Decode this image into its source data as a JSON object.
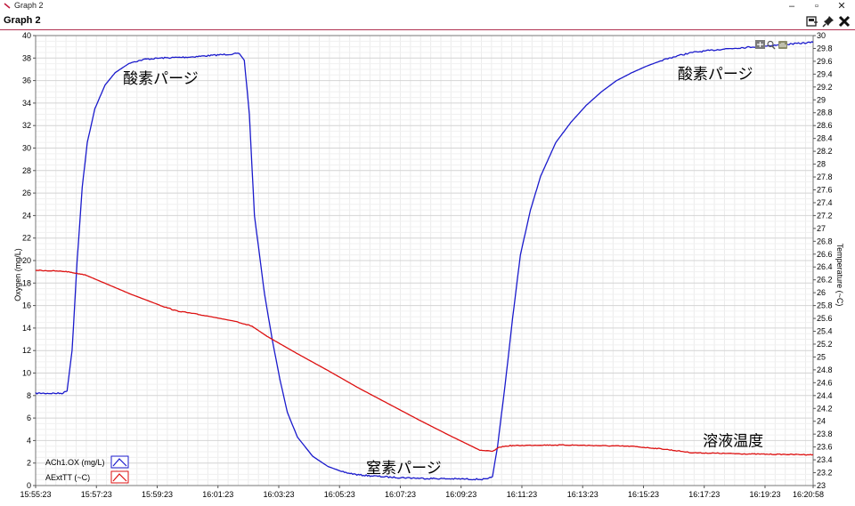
{
  "window": {
    "title": "Graph 2",
    "panel_title": "Graph 2",
    "icons": [
      "app-logo-icon",
      "minimize-icon",
      "restore-icon",
      "close-icon",
      "export-icon",
      "pin-icon",
      "close-graph-icon",
      "zoom-fit-icon",
      "zoom-icon",
      "hand-icon"
    ]
  },
  "chart_data": {
    "type": "line",
    "xlabel": "",
    "ylabel_left": "Oxygen (mg/L)",
    "ylabel_right": "Temperature (~C)",
    "x_ticks": [
      "15:55:23",
      "15:57:23",
      "15:59:23",
      "16:01:23",
      "16:03:23",
      "16:05:23",
      "16:07:23",
      "16:09:23",
      "16:11:23",
      "16:13:23",
      "16:15:23",
      "16:17:23",
      "16:19:23",
      "16:20:58"
    ],
    "xlim": [
      "15:55:23",
      "16:20:58"
    ],
    "ylim_left": [
      0,
      40
    ],
    "left_ticks": [
      "0",
      "2",
      "4",
      "6",
      "8",
      "10",
      "12",
      "14",
      "16",
      "18",
      "20",
      "22",
      "24",
      "26",
      "28",
      "30",
      "32",
      "34",
      "36",
      "38",
      "40"
    ],
    "ylim_right": [
      23,
      30
    ],
    "right_ticks": [
      "23",
      "23.2",
      "23.4",
      "23.6",
      "23.8",
      "24",
      "24.2",
      "24.4",
      "24.6",
      "24.8",
      "25",
      "25.2",
      "25.4",
      "25.6",
      "25.8",
      "26",
      "26.2",
      "26.4",
      "26.6",
      "26.8",
      "27",
      "27.2",
      "27.4",
      "27.6",
      "27.8",
      "28",
      "28.2",
      "28.4",
      "28.6",
      "28.8",
      "29",
      "29.2",
      "29.4",
      "29.6",
      "29.8",
      "30"
    ],
    "grid": true,
    "legend_position": "bottom-left",
    "series": [
      {
        "name": "ACh1.OX (mg/L)",
        "axis": "left",
        "color": "#1a1acc",
        "points": [
          [
            "15:55:23",
            8.2
          ],
          [
            "15:56:15",
            8.2
          ],
          [
            "15:56:25",
            8.4
          ],
          [
            "15:56:35",
            12
          ],
          [
            "15:56:45",
            20
          ],
          [
            "15:56:55",
            26.5
          ],
          [
            "15:57:05",
            30.5
          ],
          [
            "15:57:20",
            33.5
          ],
          [
            "15:57:40",
            35.6
          ],
          [
            "15:58:00",
            36.7
          ],
          [
            "15:58:30",
            37.6
          ],
          [
            "15:59:00",
            37.9
          ],
          [
            "15:59:30",
            38.0
          ],
          [
            "16:00:30",
            38.1
          ],
          [
            "16:01:30",
            38.3
          ],
          [
            "16:02:05",
            38.4
          ],
          [
            "16:02:15",
            37.8
          ],
          [
            "16:02:25",
            33
          ],
          [
            "16:02:35",
            24
          ],
          [
            "16:02:45",
            20.5
          ],
          [
            "16:02:55",
            17
          ],
          [
            "16:03:10",
            13
          ],
          [
            "16:03:25",
            9.5
          ],
          [
            "16:03:40",
            6.5
          ],
          [
            "16:04:00",
            4.3
          ],
          [
            "16:04:30",
            2.6
          ],
          [
            "16:05:00",
            1.7
          ],
          [
            "16:05:30",
            1.2
          ],
          [
            "16:06:00",
            0.95
          ],
          [
            "16:07:00",
            0.75
          ],
          [
            "16:08:00",
            0.65
          ],
          [
            "16:09:00",
            0.6
          ],
          [
            "16:10:15",
            0.55
          ],
          [
            "16:10:25",
            0.8
          ],
          [
            "16:10:35",
            3.5
          ],
          [
            "16:10:50",
            9
          ],
          [
            "16:11:05",
            15
          ],
          [
            "16:11:20",
            20.5
          ],
          [
            "16:11:40",
            24.5
          ],
          [
            "16:12:00",
            27.5
          ],
          [
            "16:12:30",
            30.5
          ],
          [
            "16:13:00",
            32.3
          ],
          [
            "16:13:30",
            33.8
          ],
          [
            "16:14:00",
            35.0
          ],
          [
            "16:14:30",
            36.0
          ],
          [
            "16:15:00",
            36.7
          ],
          [
            "16:15:30",
            37.3
          ],
          [
            "16:16:00",
            37.8
          ],
          [
            "16:16:30",
            38.2
          ],
          [
            "16:17:00",
            38.5
          ],
          [
            "16:18:00",
            38.8
          ],
          [
            "16:19:00",
            39.0
          ],
          [
            "16:20:00",
            39.2
          ],
          [
            "16:20:58",
            39.4
          ]
        ]
      },
      {
        "name": "AExtTT (~C)",
        "axis": "right",
        "color": "#dd1111",
        "points": [
          [
            "15:55:23",
            26.35
          ],
          [
            "15:56:23",
            26.33
          ],
          [
            "15:57:00",
            26.28
          ],
          [
            "15:57:30",
            26.18
          ],
          [
            "15:58:30",
            25.98
          ],
          [
            "15:59:30",
            25.8
          ],
          [
            "16:00:00",
            25.72
          ],
          [
            "16:01:00",
            25.64
          ],
          [
            "16:02:00",
            25.55
          ],
          [
            "16:02:30",
            25.48
          ],
          [
            "16:03:00",
            25.32
          ],
          [
            "16:04:00",
            25.05
          ],
          [
            "16:05:00",
            24.79
          ],
          [
            "16:06:00",
            24.52
          ],
          [
            "16:07:00",
            24.27
          ],
          [
            "16:08:00",
            24.02
          ],
          [
            "16:09:00",
            23.78
          ],
          [
            "16:10:00",
            23.55
          ],
          [
            "16:10:25",
            23.53
          ],
          [
            "16:10:40",
            23.6
          ],
          [
            "16:11:00",
            23.62
          ],
          [
            "16:12:00",
            23.63
          ],
          [
            "16:13:00",
            23.63
          ],
          [
            "16:14:00",
            23.62
          ],
          [
            "16:15:00",
            23.61
          ],
          [
            "16:16:00",
            23.57
          ],
          [
            "16:17:00",
            23.51
          ],
          [
            "16:18:00",
            23.5
          ],
          [
            "16:19:00",
            23.49
          ],
          [
            "16:20:58",
            23.48
          ]
        ]
      }
    ],
    "annotations": [
      {
        "text": "酸素パージ",
        "x": "15:59:30",
        "y_left": 36.2
      },
      {
        "text": "窒素パージ",
        "x": "16:07:30",
        "y_left": 1.6
      },
      {
        "text": "酸素パージ",
        "x": "16:17:45",
        "y_left": 36.6
      },
      {
        "text": "溶液温度",
        "x": "16:18:20",
        "y_left": 4.0
      }
    ]
  }
}
